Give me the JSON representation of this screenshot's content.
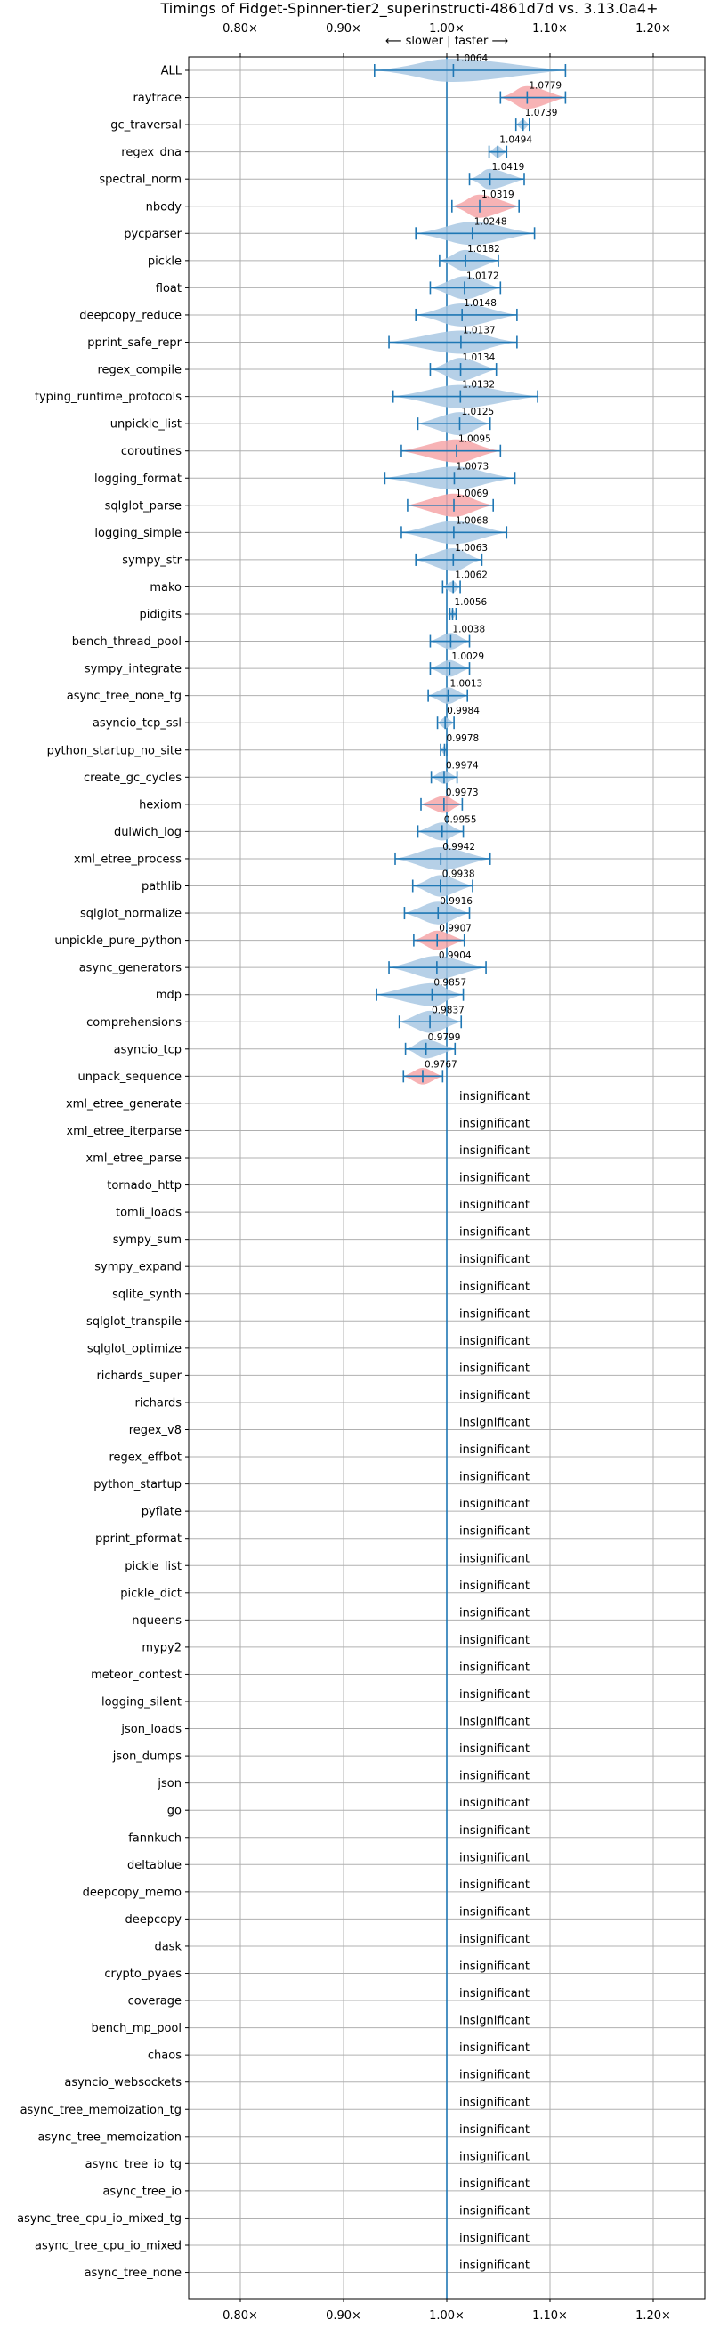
{
  "chart_data": {
    "type": "violin",
    "title": "Timings of Fidget-Spinner-tier2_superinstructi-4861d7d vs. 3.13.0a4+",
    "x_ticks": [
      "0.80×",
      "0.90×",
      "1.00×",
      "1.10×",
      "1.20×"
    ],
    "x_tick_values": [
      0.8,
      0.9,
      1.0,
      1.1,
      1.2
    ],
    "xlim": [
      0.75,
      1.25
    ],
    "direction_label": "⟵ slower  |  faster ⟶",
    "grid": true,
    "insignificant_label": "insignificant",
    "benchmarks": [
      {
        "name": "ALL",
        "mean": 1.0064,
        "label": "1.0064",
        "lo": 0.93,
        "hi": 1.115,
        "color": "blue",
        "significant": true
      },
      {
        "name": "raytrace",
        "mean": 1.0779,
        "label": "1.0779",
        "lo": 1.052,
        "hi": 1.115,
        "color": "red",
        "significant": true
      },
      {
        "name": "gc_traversal",
        "mean": 1.0739,
        "label": "1.0739",
        "lo": 1.067,
        "hi": 1.08,
        "color": "blue",
        "significant": true
      },
      {
        "name": "regex_dna",
        "mean": 1.0494,
        "label": "1.0494",
        "lo": 1.041,
        "hi": 1.058,
        "color": "blue",
        "significant": true
      },
      {
        "name": "spectral_norm",
        "mean": 1.0419,
        "label": "1.0419",
        "lo": 1.022,
        "hi": 1.075,
        "color": "blue",
        "significant": true
      },
      {
        "name": "nbody",
        "mean": 1.0319,
        "label": "1.0319",
        "lo": 1.005,
        "hi": 1.07,
        "color": "red",
        "significant": true
      },
      {
        "name": "pycparser",
        "mean": 1.0248,
        "label": "1.0248",
        "lo": 0.97,
        "hi": 1.085,
        "color": "blue",
        "significant": true
      },
      {
        "name": "pickle",
        "mean": 1.0182,
        "label": "1.0182",
        "lo": 0.993,
        "hi": 1.05,
        "color": "blue",
        "significant": true
      },
      {
        "name": "float",
        "mean": 1.0172,
        "label": "1.0172",
        "lo": 0.984,
        "hi": 1.052,
        "color": "blue",
        "significant": true
      },
      {
        "name": "deepcopy_reduce",
        "mean": 1.0148,
        "label": "1.0148",
        "lo": 0.97,
        "hi": 1.068,
        "color": "blue",
        "significant": true
      },
      {
        "name": "pprint_safe_repr",
        "mean": 1.0137,
        "label": "1.0137",
        "lo": 0.944,
        "hi": 1.068,
        "color": "blue",
        "significant": true
      },
      {
        "name": "regex_compile",
        "mean": 1.0134,
        "label": "1.0134",
        "lo": 0.984,
        "hi": 1.048,
        "color": "blue",
        "significant": true
      },
      {
        "name": "typing_runtime_protocols",
        "mean": 1.0132,
        "label": "1.0132",
        "lo": 0.948,
        "hi": 1.088,
        "color": "blue",
        "significant": true
      },
      {
        "name": "unpickle_list",
        "mean": 1.0125,
        "label": "1.0125",
        "lo": 0.972,
        "hi": 1.042,
        "color": "blue",
        "significant": true
      },
      {
        "name": "coroutines",
        "mean": 1.0095,
        "label": "1.0095",
        "lo": 0.956,
        "hi": 1.052,
        "color": "red",
        "significant": true
      },
      {
        "name": "logging_format",
        "mean": 1.0073,
        "label": "1.0073",
        "lo": 0.94,
        "hi": 1.066,
        "color": "blue",
        "significant": true
      },
      {
        "name": "sqlglot_parse",
        "mean": 1.0069,
        "label": "1.0069",
        "lo": 0.962,
        "hi": 1.045,
        "color": "red",
        "significant": true
      },
      {
        "name": "logging_simple",
        "mean": 1.0068,
        "label": "1.0068",
        "lo": 0.956,
        "hi": 1.058,
        "color": "blue",
        "significant": true
      },
      {
        "name": "sympy_str",
        "mean": 1.0063,
        "label": "1.0063",
        "lo": 0.97,
        "hi": 1.034,
        "color": "blue",
        "significant": true
      },
      {
        "name": "mako",
        "mean": 1.0062,
        "label": "1.0062",
        "lo": 0.996,
        "hi": 1.013,
        "color": "blue",
        "significant": true
      },
      {
        "name": "pidigits",
        "mean": 1.0056,
        "label": "1.0056",
        "lo": 1.003,
        "hi": 1.009,
        "color": "blue",
        "significant": true
      },
      {
        "name": "bench_thread_pool",
        "mean": 1.0038,
        "label": "1.0038",
        "lo": 0.984,
        "hi": 1.022,
        "color": "blue",
        "significant": true
      },
      {
        "name": "sympy_integrate",
        "mean": 1.0029,
        "label": "1.0029",
        "lo": 0.984,
        "hi": 1.022,
        "color": "blue",
        "significant": true
      },
      {
        "name": "async_tree_none_tg",
        "mean": 1.0013,
        "label": "1.0013",
        "lo": 0.982,
        "hi": 1.02,
        "color": "blue",
        "significant": true
      },
      {
        "name": "asyncio_tcp_ssl",
        "mean": 0.9984,
        "label": "0.9984",
        "lo": 0.991,
        "hi": 1.007,
        "color": "blue",
        "significant": true
      },
      {
        "name": "python_startup_no_site",
        "mean": 0.9978,
        "label": "0.9978",
        "lo": 0.994,
        "hi": 1.0,
        "color": "blue",
        "significant": true
      },
      {
        "name": "create_gc_cycles",
        "mean": 0.9974,
        "label": "0.9974",
        "lo": 0.985,
        "hi": 1.01,
        "color": "blue",
        "significant": true
      },
      {
        "name": "hexiom",
        "mean": 0.9973,
        "label": "0.9973",
        "lo": 0.975,
        "hi": 1.015,
        "color": "red",
        "significant": true
      },
      {
        "name": "dulwich_log",
        "mean": 0.9955,
        "label": "0.9955",
        "lo": 0.972,
        "hi": 1.016,
        "color": "blue",
        "significant": true
      },
      {
        "name": "xml_etree_process",
        "mean": 0.9942,
        "label": "0.9942",
        "lo": 0.95,
        "hi": 1.042,
        "color": "blue",
        "significant": true
      },
      {
        "name": "pathlib",
        "mean": 0.9938,
        "label": "0.9938",
        "lo": 0.967,
        "hi": 1.025,
        "color": "blue",
        "significant": true
      },
      {
        "name": "sqlglot_normalize",
        "mean": 0.9916,
        "label": "0.9916",
        "lo": 0.959,
        "hi": 1.022,
        "color": "blue",
        "significant": true
      },
      {
        "name": "unpickle_pure_python",
        "mean": 0.9907,
        "label": "0.9907",
        "lo": 0.968,
        "hi": 1.017,
        "color": "red",
        "significant": true
      },
      {
        "name": "async_generators",
        "mean": 0.9904,
        "label": "0.9904",
        "lo": 0.944,
        "hi": 1.038,
        "color": "blue",
        "significant": true
      },
      {
        "name": "mdp",
        "mean": 0.9857,
        "label": "0.9857",
        "lo": 0.932,
        "hi": 1.016,
        "color": "blue",
        "significant": true
      },
      {
        "name": "comprehensions",
        "mean": 0.9837,
        "label": "0.9837",
        "lo": 0.954,
        "hi": 1.014,
        "color": "blue",
        "significant": true
      },
      {
        "name": "asyncio_tcp",
        "mean": 0.9799,
        "label": "0.9799",
        "lo": 0.96,
        "hi": 1.008,
        "color": "blue",
        "significant": true
      },
      {
        "name": "unpack_sequence",
        "mean": 0.9767,
        "label": "0.9767",
        "lo": 0.958,
        "hi": 0.996,
        "color": "red",
        "significant": true
      },
      {
        "name": "xml_etree_generate",
        "significant": false
      },
      {
        "name": "xml_etree_iterparse",
        "significant": false
      },
      {
        "name": "xml_etree_parse",
        "significant": false
      },
      {
        "name": "tornado_http",
        "significant": false
      },
      {
        "name": "tomli_loads",
        "significant": false
      },
      {
        "name": "sympy_sum",
        "significant": false
      },
      {
        "name": "sympy_expand",
        "significant": false
      },
      {
        "name": "sqlite_synth",
        "significant": false
      },
      {
        "name": "sqlglot_transpile",
        "significant": false
      },
      {
        "name": "sqlglot_optimize",
        "significant": false
      },
      {
        "name": "richards_super",
        "significant": false
      },
      {
        "name": "richards",
        "significant": false
      },
      {
        "name": "regex_v8",
        "significant": false
      },
      {
        "name": "regex_effbot",
        "significant": false
      },
      {
        "name": "python_startup",
        "significant": false
      },
      {
        "name": "pyflate",
        "significant": false
      },
      {
        "name": "pprint_pformat",
        "significant": false
      },
      {
        "name": "pickle_list",
        "significant": false
      },
      {
        "name": "pickle_dict",
        "significant": false
      },
      {
        "name": "nqueens",
        "significant": false
      },
      {
        "name": "mypy2",
        "significant": false
      },
      {
        "name": "meteor_contest",
        "significant": false
      },
      {
        "name": "logging_silent",
        "significant": false
      },
      {
        "name": "json_loads",
        "significant": false
      },
      {
        "name": "json_dumps",
        "significant": false
      },
      {
        "name": "json",
        "significant": false
      },
      {
        "name": "go",
        "significant": false
      },
      {
        "name": "fannkuch",
        "significant": false
      },
      {
        "name": "deltablue",
        "significant": false
      },
      {
        "name": "deepcopy_memo",
        "significant": false
      },
      {
        "name": "deepcopy",
        "significant": false
      },
      {
        "name": "dask",
        "significant": false
      },
      {
        "name": "crypto_pyaes",
        "significant": false
      },
      {
        "name": "coverage",
        "significant": false
      },
      {
        "name": "bench_mp_pool",
        "significant": false
      },
      {
        "name": "chaos",
        "significant": false
      },
      {
        "name": "asyncio_websockets",
        "significant": false
      },
      {
        "name": "async_tree_memoization_tg",
        "significant": false
      },
      {
        "name": "async_tree_memoization",
        "significant": false
      },
      {
        "name": "async_tree_io_tg",
        "significant": false
      },
      {
        "name": "async_tree_io",
        "significant": false
      },
      {
        "name": "async_tree_cpu_io_mixed_tg",
        "significant": false
      },
      {
        "name": "async_tree_cpu_io_mixed",
        "significant": false
      },
      {
        "name": "async_tree_none",
        "significant": false
      }
    ],
    "colors": {
      "blue_fill": "#a9c8e3",
      "red_fill": "#f6a6a8",
      "bar": "#1f77b4",
      "grid": "#b0b0b0"
    }
  }
}
